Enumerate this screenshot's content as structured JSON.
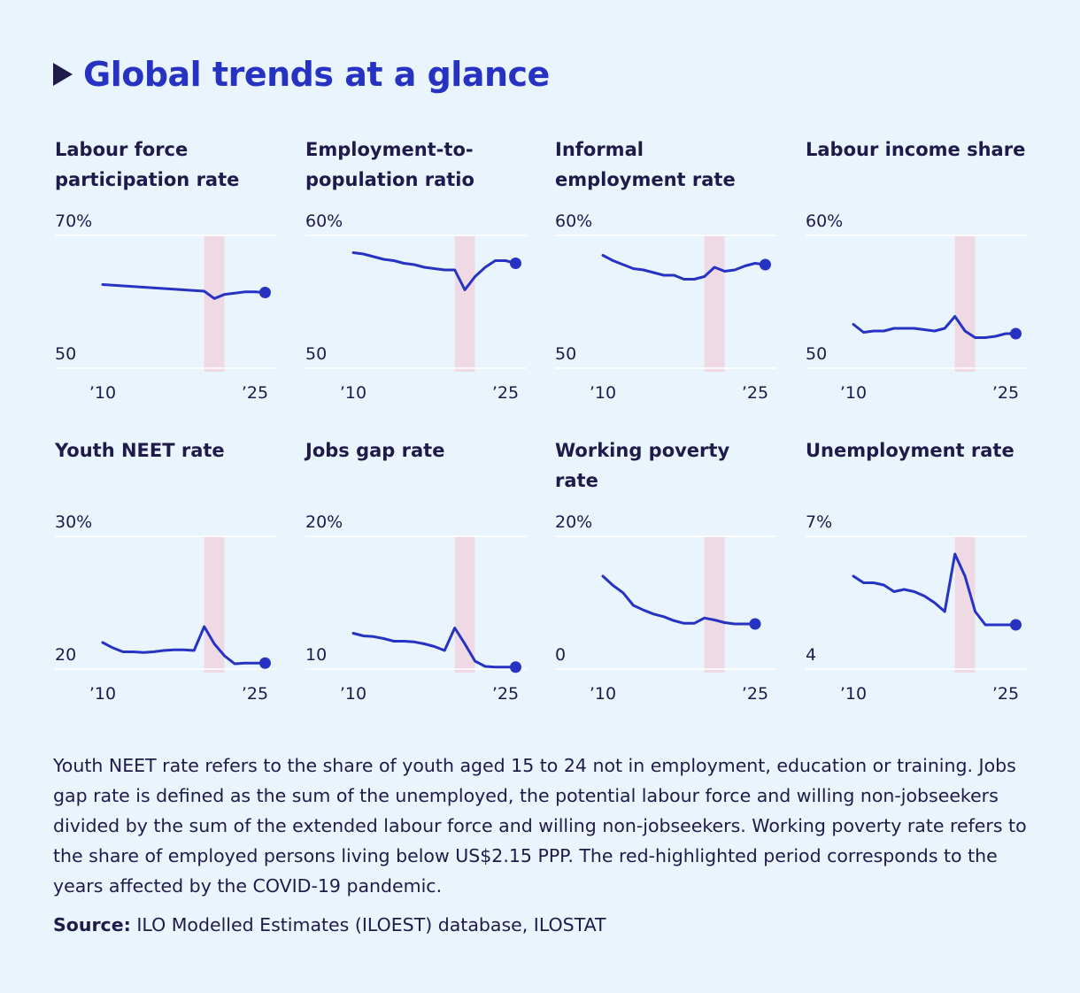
{
  "page": {
    "title": "Global trends at a glance"
  },
  "styles": {
    "line_color": "#2633c2",
    "highlight_color": "#efd9e5",
    "grid_color": "#ffffff"
  },
  "chart_data": [
    {
      "type": "line",
      "title": "Labour force participation rate",
      "ymax_label": "70%",
      "ymin_label": "50",
      "ylim": [
        50,
        70
      ],
      "x_tick_labels": [
        "’10",
        "’25"
      ],
      "highlight_range": [
        2020,
        2022
      ],
      "x": [
        2010,
        2011,
        2012,
        2013,
        2014,
        2015,
        2016,
        2017,
        2018,
        2019,
        2020,
        2021,
        2022,
        2023,
        2024,
        2025,
        2026
      ],
      "values": [
        62.6,
        62.5,
        62.4,
        62.3,
        62.2,
        62.1,
        62.0,
        61.9,
        61.8,
        61.7,
        61.6,
        60.5,
        61.1,
        61.3,
        61.5,
        61.5,
        61.4
      ]
    },
    {
      "type": "line",
      "title": "Employment-to-population ratio",
      "ymax_label": "60%",
      "ymin_label": "50",
      "ylim": [
        50,
        60
      ],
      "x_tick_labels": [
        "’10",
        "’25"
      ],
      "highlight_range": [
        2020,
        2022
      ],
      "x": [
        2010,
        2011,
        2012,
        2013,
        2014,
        2015,
        2016,
        2017,
        2018,
        2019,
        2020,
        2021,
        2022,
        2023,
        2024,
        2025,
        2026
      ],
      "values": [
        58.7,
        58.6,
        58.4,
        58.2,
        58.1,
        57.9,
        57.8,
        57.6,
        57.5,
        57.4,
        57.4,
        55.9,
        56.9,
        57.6,
        58.1,
        58.1,
        57.9
      ]
    },
    {
      "type": "line",
      "title": "Informal employment rate",
      "ymax_label": "60%",
      "ymin_label": "50",
      "ylim": [
        50,
        60
      ],
      "x_tick_labels": [
        "’10",
        "’25"
      ],
      "highlight_range": [
        2020,
        2022
      ],
      "x": [
        2010,
        2011,
        2012,
        2013,
        2014,
        2015,
        2016,
        2017,
        2018,
        2019,
        2020,
        2021,
        2022,
        2023,
        2024,
        2025,
        2026
      ],
      "values": [
        58.5,
        58.1,
        57.8,
        57.5,
        57.4,
        57.2,
        57.0,
        57.0,
        56.7,
        56.7,
        56.9,
        57.6,
        57.3,
        57.4,
        57.7,
        57.9,
        57.8
      ]
    },
    {
      "type": "line",
      "title": "Labour income share",
      "ymax_label": "60%",
      "ymin_label": "50",
      "ylim": [
        50,
        60
      ],
      "x_tick_labels": [
        "’10",
        "’25"
      ],
      "highlight_range": [
        2020,
        2022
      ],
      "x": [
        2010,
        2011,
        2012,
        2013,
        2014,
        2015,
        2016,
        2017,
        2018,
        2019,
        2020,
        2021,
        2022,
        2023,
        2024,
        2025,
        2026
      ],
      "values": [
        53.3,
        52.7,
        52.8,
        52.8,
        53.0,
        53.0,
        53.0,
        52.9,
        52.8,
        53.0,
        53.9,
        52.8,
        52.3,
        52.3,
        52.4,
        52.6,
        52.6
      ]
    },
    {
      "type": "line",
      "title": "Youth NEET rate",
      "ymax_label": "30%",
      "ymin_label": "20",
      "ylim": [
        20,
        30
      ],
      "x_tick_labels": [
        "’10",
        "’25"
      ],
      "highlight_range": [
        2020,
        2022
      ],
      "x": [
        2010,
        2011,
        2012,
        2013,
        2014,
        2015,
        2016,
        2017,
        2018,
        2019,
        2020,
        2021,
        2022,
        2023,
        2024,
        2025,
        2026
      ],
      "values": [
        22.0,
        21.6,
        21.3,
        21.3,
        21.25,
        21.3,
        21.4,
        21.45,
        21.45,
        21.4,
        23.2,
        21.9,
        21.0,
        20.4,
        20.45,
        20.45,
        20.45
      ]
    },
    {
      "type": "line",
      "title": "Jobs gap rate",
      "ymax_label": "20%",
      "ymin_label": "10",
      "ylim": [
        10,
        20
      ],
      "x_tick_labels": [
        "’10",
        "’25"
      ],
      "highlight_range": [
        2020,
        2022
      ],
      "x": [
        2010,
        2011,
        2012,
        2013,
        2014,
        2015,
        2016,
        2017,
        2018,
        2019,
        2020,
        2021,
        2022,
        2023,
        2024,
        2025,
        2026
      ],
      "values": [
        12.7,
        12.5,
        12.45,
        12.3,
        12.1,
        12.1,
        12.05,
        11.9,
        11.7,
        11.4,
        13.1,
        11.9,
        10.6,
        10.2,
        10.15,
        10.15,
        10.15
      ]
    },
    {
      "type": "line",
      "title": "Working poverty rate",
      "ymax_label": "20%",
      "ymin_label": "0",
      "ylim": [
        0,
        20
      ],
      "x_tick_labels": [
        "’10",
        "’25"
      ],
      "highlight_range": [
        2020,
        2022
      ],
      "x": [
        2010,
        2011,
        2012,
        2013,
        2014,
        2015,
        2016,
        2017,
        2018,
        2019,
        2020,
        2021,
        2022,
        2023,
        2024,
        2025
      ],
      "values": [
        14.0,
        12.6,
        11.5,
        9.6,
        8.9,
        8.3,
        7.9,
        7.3,
        6.9,
        6.9,
        7.7,
        7.4,
        7.0,
        6.8,
        6.8,
        6.8
      ]
    },
    {
      "type": "line",
      "title": "Unemployment rate",
      "ymax_label": "7%",
      "ymin_label": "4",
      "ylim": [
        4,
        7
      ],
      "x_tick_labels": [
        "’10",
        "’25"
      ],
      "highlight_range": [
        2020,
        2022
      ],
      "x": [
        2010,
        2011,
        2012,
        2013,
        2014,
        2015,
        2016,
        2017,
        2018,
        2019,
        2020,
        2021,
        2022,
        2023,
        2024,
        2025,
        2026
      ],
      "values": [
        6.1,
        5.95,
        5.95,
        5.9,
        5.75,
        5.8,
        5.75,
        5.65,
        5.5,
        5.3,
        6.6,
        6.1,
        5.3,
        5.0,
        5.0,
        5.0,
        5.0
      ]
    }
  ],
  "footnote": {
    "text": "Youth NEET rate refers to the share of youth aged 15 to 24 not in employment, education or training. Jobs gap rate is defined as the sum of the unemployed, the potential labour force and willing non-jobseekers divided by the sum of the extended labour force and willing non-jobseekers. Working poverty rate refers to the share of employed persons living below US$2.15 PPP. The red-highlighted period corresponds to the years affected by the COVID-19 pandemic.",
    "source_label": "Source:",
    "source_text": "ILO Modelled Estimates (ILOEST) database, ILOSTAT"
  }
}
